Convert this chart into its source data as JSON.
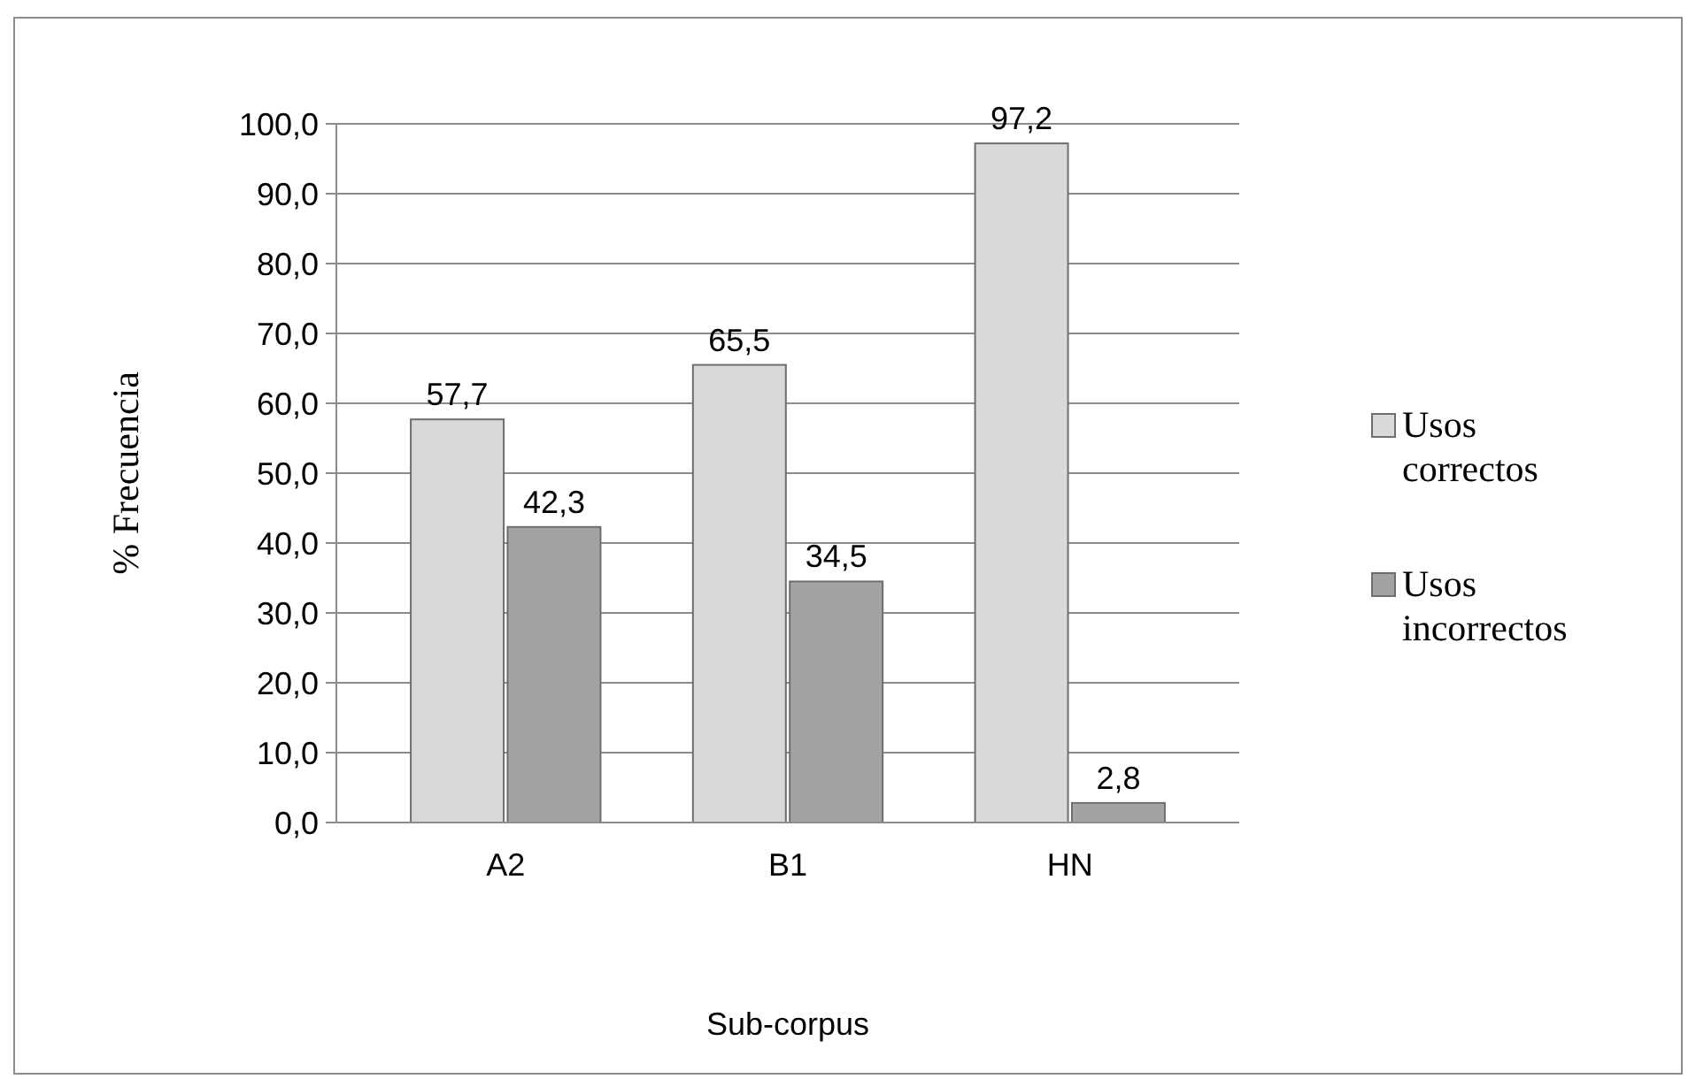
{
  "chart_data": {
    "type": "bar",
    "xlabel": "Sub-corpus",
    "ylabel": "% Frecuencia",
    "categories": [
      "A2",
      "B1",
      "HN"
    ],
    "series": [
      {
        "name": "Usos correctos",
        "color": "#d9d9d9",
        "values": [
          57.7,
          65.5,
          97.2
        ],
        "value_labels": [
          "57,7",
          "65,5",
          "97,2"
        ]
      },
      {
        "name": "Usos incorrectos",
        "color": "#a3a3a3",
        "values": [
          42.3,
          34.5,
          2.8
        ],
        "value_labels": [
          "42,3",
          "34,5",
          "2,8"
        ]
      }
    ],
    "ylim": [
      0,
      100
    ],
    "yticks": [
      {
        "value": 0,
        "label": "0,0"
      },
      {
        "value": 10,
        "label": "10,0"
      },
      {
        "value": 20,
        "label": "20,0"
      },
      {
        "value": 30,
        "label": "30,0"
      },
      {
        "value": 40,
        "label": "40,0"
      },
      {
        "value": 50,
        "label": "50,0"
      },
      {
        "value": 60,
        "label": "60,0"
      },
      {
        "value": 70,
        "label": "70,0"
      },
      {
        "value": 80,
        "label": "80,0"
      },
      {
        "value": 90,
        "label": "90,0"
      },
      {
        "value": 100,
        "label": "100,0"
      }
    ],
    "grid": "y",
    "legend": "right"
  }
}
